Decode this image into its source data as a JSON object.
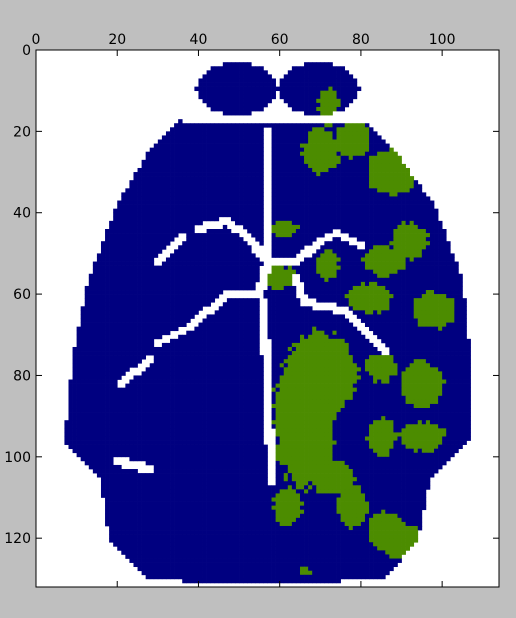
{
  "chart_data": {
    "type": "heatmap",
    "title": "",
    "xlabel": "",
    "ylabel": "",
    "xlim": [
      0,
      114
    ],
    "ylim": [
      132,
      0
    ],
    "x_ticks": [
      0,
      20,
      40,
      60,
      80,
      100
    ],
    "y_ticks": [
      0,
      20,
      40,
      60,
      80,
      100,
      120
    ],
    "x_axis_position": "top",
    "grid": false,
    "legend": "none",
    "classes": [
      {
        "value": 0,
        "color": "#ffffff"
      },
      {
        "value": 1,
        "color": "#000080"
      },
      {
        "value": 2,
        "color": "#4c8c00"
      }
    ],
    "brain_outline": [
      [
        45,
        9
      ],
      [
        29,
        23
      ],
      [
        20,
        38
      ],
      [
        13,
        56
      ],
      [
        9,
        76
      ],
      [
        7,
        96
      ],
      [
        16,
        106
      ],
      [
        18,
        120
      ],
      [
        28,
        130
      ],
      [
        45,
        131
      ],
      [
        65,
        131
      ],
      [
        86,
        130
      ],
      [
        94,
        120
      ],
      [
        97,
        106
      ],
      [
        107,
        96
      ],
      [
        107,
        76
      ],
      [
        105,
        56
      ],
      [
        98,
        38
      ],
      [
        87,
        23
      ],
      [
        70,
        9
      ],
      [
        57,
        5
      ]
    ],
    "olfactory_lobes": [
      {
        "center": [
          49.5,
          9.5
        ],
        "radius": [
          10,
          6.5
        ]
      },
      {
        "center": [
          69.5,
          9.5
        ],
        "radius": [
          10,
          6.5
        ]
      }
    ],
    "activation_regions": [
      {
        "center": [
          70,
          25
        ],
        "radius": [
          5,
          6
        ]
      },
      {
        "center": [
          78,
          22
        ],
        "radius": [
          5,
          5
        ]
      },
      {
        "center": [
          88,
          30
        ],
        "radius": [
          7,
          6
        ]
      },
      {
        "center": [
          72,
          14
        ],
        "radius": [
          3,
          5
        ]
      },
      {
        "center": [
          86,
          52
        ],
        "radius": [
          6,
          4
        ]
      },
      {
        "center": [
          92,
          47
        ],
        "radius": [
          5,
          5
        ]
      },
      {
        "center": [
          98,
          64
        ],
        "radius": [
          6,
          5
        ]
      },
      {
        "center": [
          82,
          61
        ],
        "radius": [
          6,
          4
        ]
      },
      {
        "center": [
          60,
          56
        ],
        "radius": [
          5,
          3
        ]
      },
      {
        "center": [
          72,
          53
        ],
        "radius": [
          3,
          4
        ]
      },
      {
        "center": [
          61,
          44
        ],
        "radius": [
          4,
          2
        ]
      },
      {
        "center": [
          66,
          90
        ],
        "radius": [
          8,
          20
        ]
      },
      {
        "center": [
          70,
          80
        ],
        "radius": [
          10,
          12
        ]
      },
      {
        "center": [
          73,
          105
        ],
        "radius": [
          6,
          5
        ]
      },
      {
        "center": [
          85,
          95
        ],
        "radius": [
          4,
          5
        ]
      },
      {
        "center": [
          95,
          95
        ],
        "radius": [
          6,
          4
        ]
      },
      {
        "center": [
          95,
          82
        ],
        "radius": [
          6,
          6
        ]
      },
      {
        "center": [
          85,
          78
        ],
        "radius": [
          4,
          4
        ]
      },
      {
        "center": [
          78,
          112
        ],
        "radius": [
          4,
          6
        ]
      },
      {
        "center": [
          86,
          118
        ],
        "radius": [
          5,
          5
        ]
      },
      {
        "center": [
          90,
          121
        ],
        "radius": [
          6,
          5
        ]
      },
      {
        "center": [
          62,
          112
        ],
        "radius": [
          4,
          5
        ]
      },
      {
        "center": [
          66,
          128
        ],
        "radius": [
          2,
          1
        ]
      }
    ]
  }
}
